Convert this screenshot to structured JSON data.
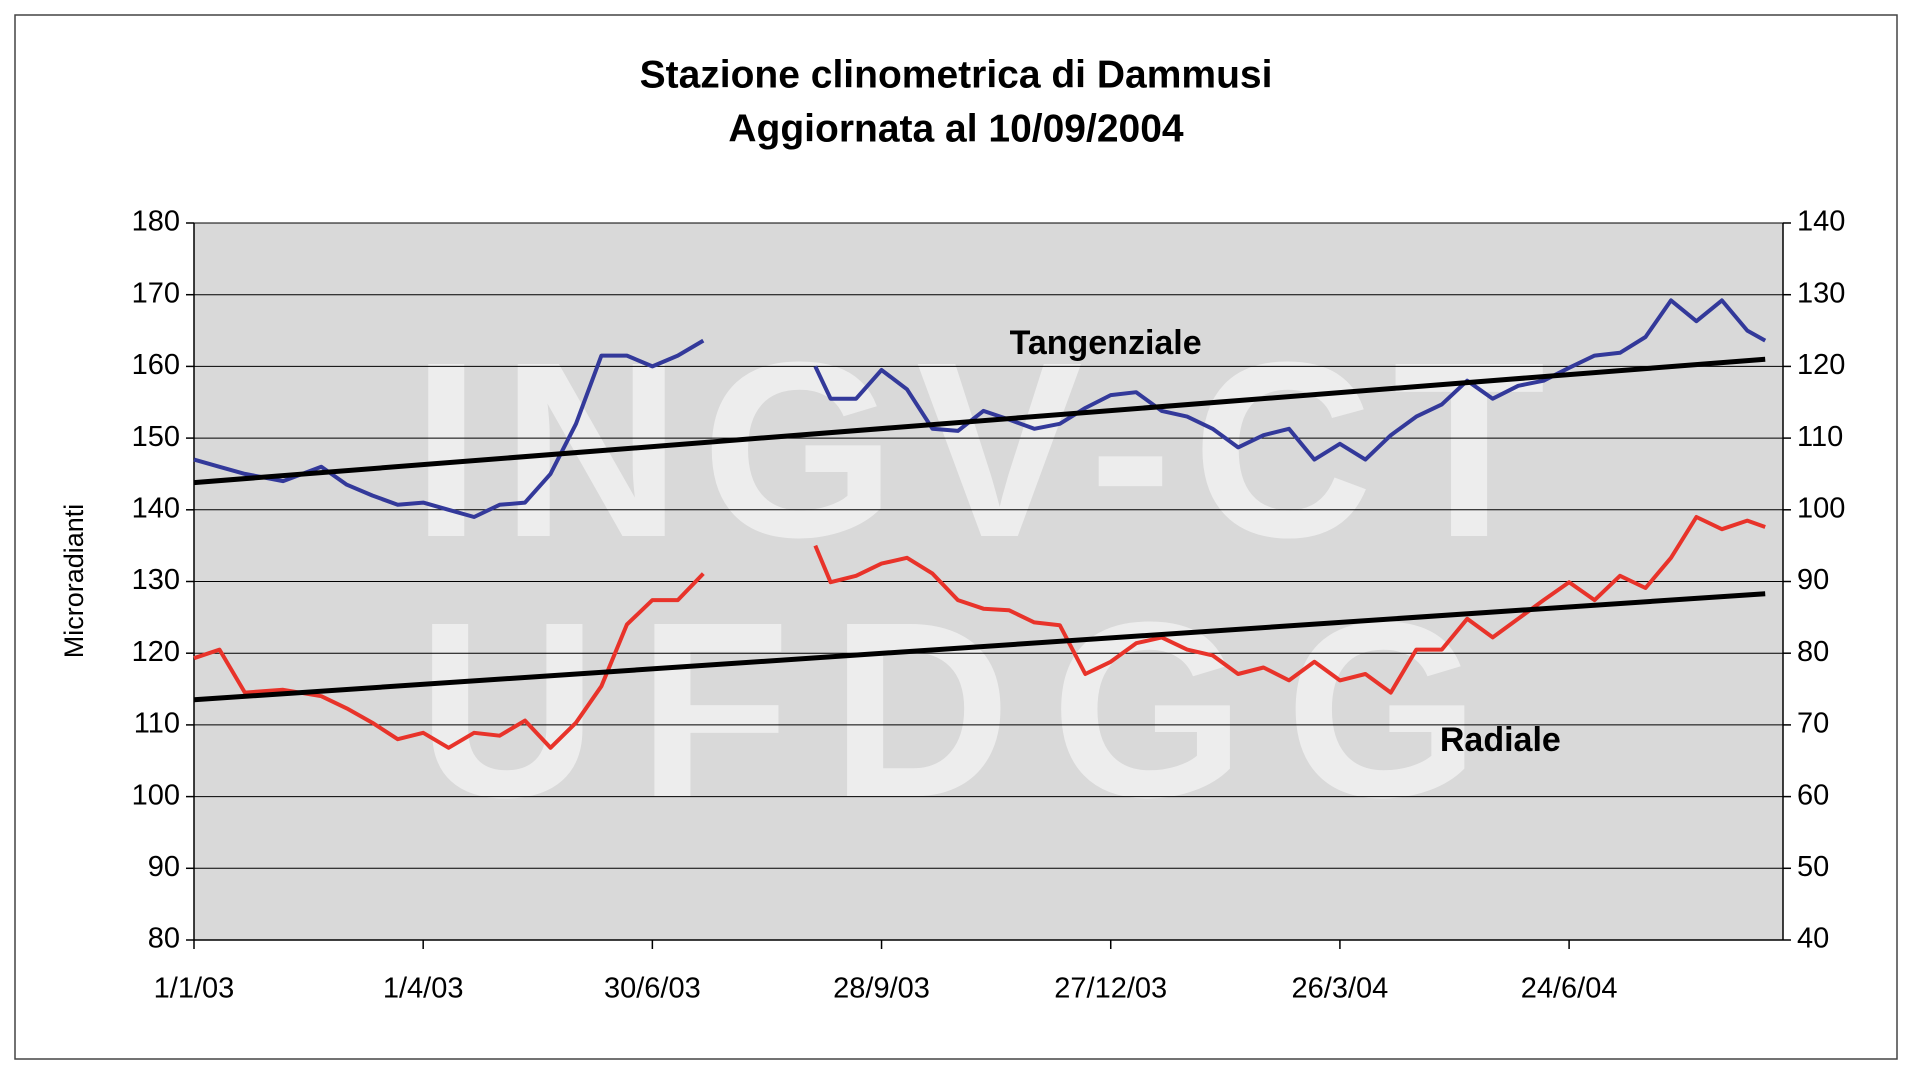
{
  "chart_data": {
    "type": "line",
    "title": [
      "Stazione clinometrica di Dammusi",
      "Aggiornata al 10/09/2004"
    ],
    "y_label": "Microradianti",
    "watermark": [
      "INGV-CT",
      "UFDGG"
    ],
    "annotations": [
      {
        "text": "Tangenziale",
        "x": "2003-12-25",
        "y": 163
      },
      {
        "text": "Radiale",
        "x": "2004-05-28",
        "y": 67.6,
        "axis": "y2"
      }
    ],
    "x": [
      "2003-01-01",
      "2003-01-11",
      "2003-01-21",
      "2003-02-05",
      "2003-02-20",
      "2003-03-02",
      "2003-03-12",
      "2003-03-22",
      "2003-04-01",
      "2003-04-11",
      "2003-04-21",
      "2003-05-01",
      "2003-05-11",
      "2003-05-21",
      "2003-05-31",
      "2003-06-10",
      "2003-06-20",
      "2003-06-30",
      "2003-07-10",
      "2003-07-20",
      "2003-08-11",
      "2003-09-02",
      "2003-09-08",
      "2003-09-18",
      "2003-09-28",
      "2003-10-08",
      "2003-10-18",
      "2003-10-28",
      "2003-11-07",
      "2003-11-17",
      "2003-11-27",
      "2003-12-07",
      "2003-12-17",
      "2003-12-27",
      "2004-01-06",
      "2004-01-16",
      "2004-01-26",
      "2004-02-05",
      "2004-02-15",
      "2004-02-25",
      "2004-03-06",
      "2004-03-16",
      "2004-03-26",
      "2004-04-05",
      "2004-04-15",
      "2004-04-25",
      "2004-05-05",
      "2004-05-15",
      "2004-05-25",
      "2004-06-04",
      "2004-06-14",
      "2004-06-24",
      "2004-07-04",
      "2004-07-14",
      "2004-07-24",
      "2004-08-03",
      "2004-08-13",
      "2004-08-23",
      "2004-09-02",
      "2004-09-09"
    ],
    "series": [
      {
        "name": "Tangenziale",
        "color": "#33399a",
        "values": [
          147,
          146,
          145,
          144,
          146,
          143.5,
          142,
          140.7,
          141,
          140,
          139,
          140.7,
          141,
          145,
          152,
          161.5,
          161.5,
          160,
          161.5,
          163.6,
          null,
          160,
          155.5,
          155.5,
          159.5,
          156.8,
          151.3,
          151,
          153.8,
          152.6,
          151.3,
          152,
          154.2,
          156,
          156.4,
          153.8,
          153,
          151.3,
          148.7,
          150.4,
          151.3,
          147,
          149.2,
          147,
          150.4,
          153,
          154.7,
          158,
          155.5,
          157.3,
          158,
          159.8,
          161.5,
          161.9,
          164.1,
          169.2,
          166.3,
          169.2,
          165,
          163.6
        ]
      },
      {
        "name": "Radiale",
        "color": "#e8332a",
        "axis": "y2",
        "values": [
          79.3,
          80.5,
          74.5,
          74.9,
          74,
          72.3,
          70.3,
          68,
          68.9,
          66.8,
          68.9,
          68.5,
          70.6,
          66.8,
          70.3,
          75.4,
          84,
          87.4,
          87.4,
          91.1,
          null,
          95,
          89.9,
          90.8,
          92.5,
          93.3,
          91.1,
          87.4,
          86.2,
          86,
          84.3,
          83.9,
          77.1,
          78.8,
          81.4,
          82.2,
          80.5,
          79.7,
          77.1,
          78,
          76.2,
          78.8,
          76.2,
          77.1,
          74.5,
          80.5,
          80.5,
          84.8,
          82.2,
          84.8,
          87.4,
          89.9,
          87.4,
          90.8,
          89.1,
          93.3,
          99,
          97.3,
          98.5,
          97.6
        ]
      }
    ],
    "trendlines": [
      {
        "color": "#000000",
        "x": [
          "2003-01-01",
          "2004-09-09"
        ],
        "values": [
          143.8,
          161
        ]
      },
      {
        "color": "#000000",
        "axis": "y2",
        "x": [
          "2003-01-01",
          "2004-09-09"
        ],
        "values": [
          73.5,
          88.3
        ]
      }
    ],
    "xlim": [
      "2003-01-01",
      "2004-09-16"
    ],
    "xticks": [
      {
        "value": "2003-01-01",
        "label": "1/1/03"
      },
      {
        "value": "2003-04-01",
        "label": "1/4/03"
      },
      {
        "value": "2003-06-30",
        "label": "30/6/03"
      },
      {
        "value": "2003-09-28",
        "label": "28/9/03"
      },
      {
        "value": "2003-12-27",
        "label": "27/12/03"
      },
      {
        "value": "2004-03-26",
        "label": "26/3/04"
      },
      {
        "value": "2004-06-24",
        "label": "24/6/04"
      }
    ],
    "ylim": [
      80,
      180
    ],
    "yticks": [
      80,
      90,
      100,
      110,
      120,
      130,
      140,
      150,
      160,
      170,
      180
    ],
    "y2lim": [
      40,
      140
    ],
    "y2ticks": [
      40,
      50,
      60,
      70,
      80,
      90,
      100,
      110,
      120,
      130,
      140
    ],
    "grid": true,
    "plot_background": "#d9d9d9"
  }
}
